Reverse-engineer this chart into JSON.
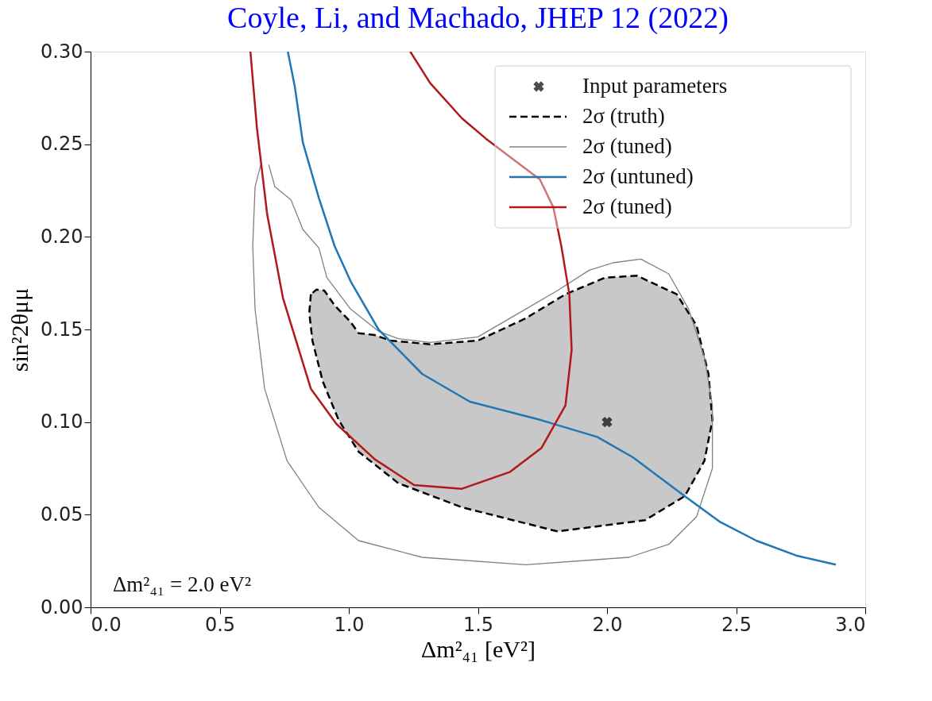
{
  "chart_data": {
    "type": "line",
    "title": "Coyle, Li, and Machado, JHEP 12 (2022)",
    "xlabel": "Δm²₄₁ [eV²]",
    "ylabel": "sin²2θμμ",
    "annotations": [
      "Δm²₄₁ = 2.0 eV²"
    ],
    "xlim": [
      0.0,
      3.0
    ],
    "xticks": [
      {
        "value": 0,
        "label": "0.0"
      },
      0.5,
      {
        "value": 1,
        "label": "1.0"
      },
      1.5,
      {
        "value": 2,
        "label": "2.0"
      },
      2.5,
      {
        "value": 3,
        "label": "3.0"
      }
    ],
    "ylim": [
      0.0,
      0.3
    ],
    "yticks": [
      {
        "value": 0,
        "label": "0.00"
      },
      0.05,
      {
        "value": 0.1,
        "label": "0.10"
      },
      0.15,
      {
        "value": 0.2,
        "label": "0.20"
      },
      0.25,
      {
        "value": 0.3,
        "label": "0.30"
      }
    ],
    "grid": false,
    "legend": "top right",
    "series": [
      {
        "type": "scatter",
        "name": "Input parameters",
        "color": "#000000",
        "marker": "cross",
        "x": [
          2.0
        ],
        "values": [
          0.1
        ]
      },
      {
        "type": "area",
        "name": "2σ (truth)",
        "color": "#000000",
        "line_style": "dashed",
        "x": [
          0.853,
          0.847,
          0.859,
          0.899,
          0.961,
          1.038,
          1.192,
          1.438,
          1.808,
          2.147,
          2.301,
          2.377,
          2.408,
          2.393,
          2.347,
          2.27,
          2.116,
          1.993,
          1.839,
          1.685,
          1.5,
          1.315,
          1.161,
          1.1,
          1.038,
          1.007,
          0.945,
          0.905,
          0.875,
          0.853
        ],
        "values": [
          0.169,
          0.159,
          0.144,
          0.122,
          0.101,
          0.084,
          0.067,
          0.054,
          0.041,
          0.047,
          0.06,
          0.079,
          0.101,
          0.126,
          0.152,
          0.169,
          0.179,
          0.178,
          0.169,
          0.156,
          0.144,
          0.142,
          0.144,
          0.147,
          0.148,
          0.154,
          0.163,
          0.171,
          0.1715,
          0.169
        ]
      },
      {
        "type": "line",
        "name": "2σ (tuned)",
        "color": "#808080",
        "line_style": "solid",
        "x": [
          0.659,
          0.637,
          0.628,
          0.637,
          0.674,
          0.761,
          0.884,
          1.038,
          1.284,
          1.685,
          2.085,
          2.239,
          2.347,
          2.408,
          2.408,
          2.377,
          2.316,
          2.239,
          2.131,
          2.023,
          1.931,
          1.808,
          1.685,
          1.5,
          1.315,
          1.192,
          1.115,
          1.007,
          0.915,
          0.884,
          0.822,
          0.776,
          0.714,
          0.69
        ],
        "values": [
          0.239,
          0.227,
          0.195,
          0.161,
          0.118,
          0.079,
          0.054,
          0.036,
          0.027,
          0.023,
          0.027,
          0.034,
          0.049,
          0.075,
          0.109,
          0.135,
          0.161,
          0.18,
          0.188,
          0.186,
          0.182,
          0.171,
          0.161,
          0.146,
          0.143,
          0.145,
          0.149,
          0.161,
          0.178,
          0.194,
          0.204,
          0.22,
          0.227,
          0.239
        ]
      },
      {
        "type": "line",
        "name": "2σ (untuned)",
        "color": "#1f77b4",
        "line_style": "solid",
        "x": [
          0.764,
          0.791,
          0.822,
          0.884,
          0.945,
          1.007,
          1.115,
          1.284,
          1.469,
          1.746,
          1.962,
          2.1,
          2.301,
          2.439,
          2.578,
          2.732,
          2.886
        ],
        "values": [
          0.3,
          0.281,
          0.251,
          0.221,
          0.195,
          0.176,
          0.15,
          0.126,
          0.111,
          0.101,
          0.092,
          0.081,
          0.06,
          0.046,
          0.036,
          0.028,
          0.023
        ]
      },
      {
        "name": "2σ (tuned)",
        "color": "#b2181b",
        "line_style": "solid",
        "x": [
          0.619,
          0.644,
          0.684,
          0.745,
          0.853,
          0.952,
          1.1,
          1.253,
          1.438,
          1.623,
          1.746,
          1.839,
          1.863,
          1.854,
          1.823,
          1.792,
          1.74,
          1.654,
          1.531,
          1.438,
          1.315,
          1.238
        ],
        "values": [
          0.3,
          0.259,
          0.212,
          0.167,
          0.118,
          0.099,
          0.08,
          0.066,
          0.064,
          0.073,
          0.086,
          0.109,
          0.139,
          0.169,
          0.195,
          0.216,
          0.231,
          0.24,
          0.253,
          0.264,
          0.283,
          0.3
        ]
      }
    ]
  }
}
